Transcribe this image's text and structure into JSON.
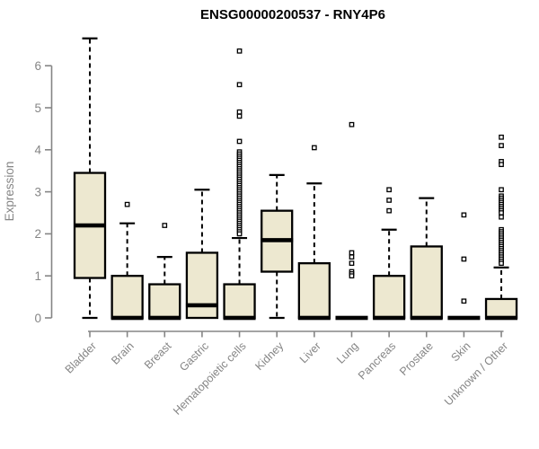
{
  "chart_data": {
    "type": "boxplot",
    "title": "ENSG00000200537 - RNY4P6",
    "xlabel": "",
    "ylabel": "Expression",
    "ylim": [
      0,
      6.7
    ],
    "yticks": [
      0,
      1,
      2,
      3,
      4,
      5,
      6
    ],
    "grid": "off",
    "legend": "none",
    "categories": [
      "Bladder",
      "Brain",
      "Breast",
      "Gastric",
      "Hematopoietic cells",
      "Kidney",
      "Liver",
      "Lung",
      "Pancreas",
      "Prostate",
      "Skin",
      "Unknown / Other"
    ],
    "series": [
      {
        "name": "Bladder",
        "whisker_low": 0,
        "q1": 0.95,
        "median": 2.2,
        "q3": 3.45,
        "whisker_high": 6.65,
        "outliers": []
      },
      {
        "name": "Brain",
        "whisker_low": 0,
        "q1": 0,
        "median": 0,
        "q3": 1.0,
        "whisker_high": 2.25,
        "outliers": [
          2.7
        ]
      },
      {
        "name": "Breast",
        "whisker_low": 0,
        "q1": 0,
        "median": 0,
        "q3": 0.8,
        "whisker_high": 1.45,
        "outliers": [
          2.2
        ]
      },
      {
        "name": "Gastric",
        "whisker_low": 0,
        "q1": 0,
        "median": 0.3,
        "q3": 1.55,
        "whisker_high": 3.05,
        "outliers": []
      },
      {
        "name": "Hematopoietic cells",
        "whisker_low": 0,
        "q1": 0,
        "median": 0,
        "q3": 0.8,
        "whisker_high": 1.9,
        "outliers": [
          6.35,
          5.55,
          4.9,
          4.8,
          4.2,
          3.95,
          3.9,
          3.85,
          3.8,
          3.75,
          3.7,
          3.65,
          3.6,
          3.55,
          3.5,
          3.45,
          3.4,
          3.35,
          3.3,
          3.25,
          3.2,
          3.15,
          3.1,
          3.05,
          3.0,
          2.95,
          2.9,
          2.85,
          2.8,
          2.75,
          2.7,
          2.65,
          2.6,
          2.55,
          2.5,
          2.45,
          2.4,
          2.35,
          2.3,
          2.25,
          2.2,
          2.15,
          2.1,
          2.05,
          2.0
        ]
      },
      {
        "name": "Kidney",
        "whisker_low": 0,
        "q1": 1.1,
        "median": 1.85,
        "q3": 2.55,
        "whisker_high": 3.4,
        "outliers": []
      },
      {
        "name": "Liver",
        "whisker_low": 0,
        "q1": 0,
        "median": 0,
        "q3": 1.3,
        "whisker_high": 3.2,
        "outliers": [
          4.05
        ]
      },
      {
        "name": "Lung",
        "whisker_low": 0,
        "q1": 0,
        "median": 0,
        "q3": 0,
        "whisker_high": 0,
        "outliers": [
          4.6,
          1.55,
          1.45,
          1.3,
          1.1,
          1.05,
          1.0
        ]
      },
      {
        "name": "Pancreas",
        "whisker_low": 0,
        "q1": 0,
        "median": 0,
        "q3": 1.0,
        "whisker_high": 2.1,
        "outliers": [
          3.05,
          2.8,
          2.55
        ]
      },
      {
        "name": "Prostate",
        "whisker_low": 0,
        "q1": 0,
        "median": 0,
        "q3": 1.7,
        "whisker_high": 2.85,
        "outliers": []
      },
      {
        "name": "Skin",
        "whisker_low": 0,
        "q1": 0,
        "median": 0,
        "q3": 0,
        "whisker_high": 0,
        "outliers": [
          2.45,
          1.4,
          0.4
        ]
      },
      {
        "name": "Unknown / Other",
        "whisker_low": 0,
        "q1": 0,
        "median": 0,
        "q3": 0.45,
        "whisker_high": 1.2,
        "outliers": [
          4.3,
          4.1,
          3.72,
          3.65,
          3.05,
          2.9,
          2.85,
          2.8,
          2.75,
          2.7,
          2.65,
          2.6,
          2.55,
          2.5,
          2.4,
          2.1,
          2.05,
          2.0,
          1.95,
          1.9,
          1.85,
          1.8,
          1.75,
          1.7,
          1.65,
          1.6,
          1.55,
          1.5,
          1.45,
          1.4,
          1.35,
          1.3
        ]
      }
    ],
    "colors": {
      "box_fill": "#EDE8D0",
      "box_line": "#000000",
      "median_line": "#000000",
      "outlier_line": "#000000",
      "axis": "#858585",
      "title_text": "#000000"
    }
  }
}
